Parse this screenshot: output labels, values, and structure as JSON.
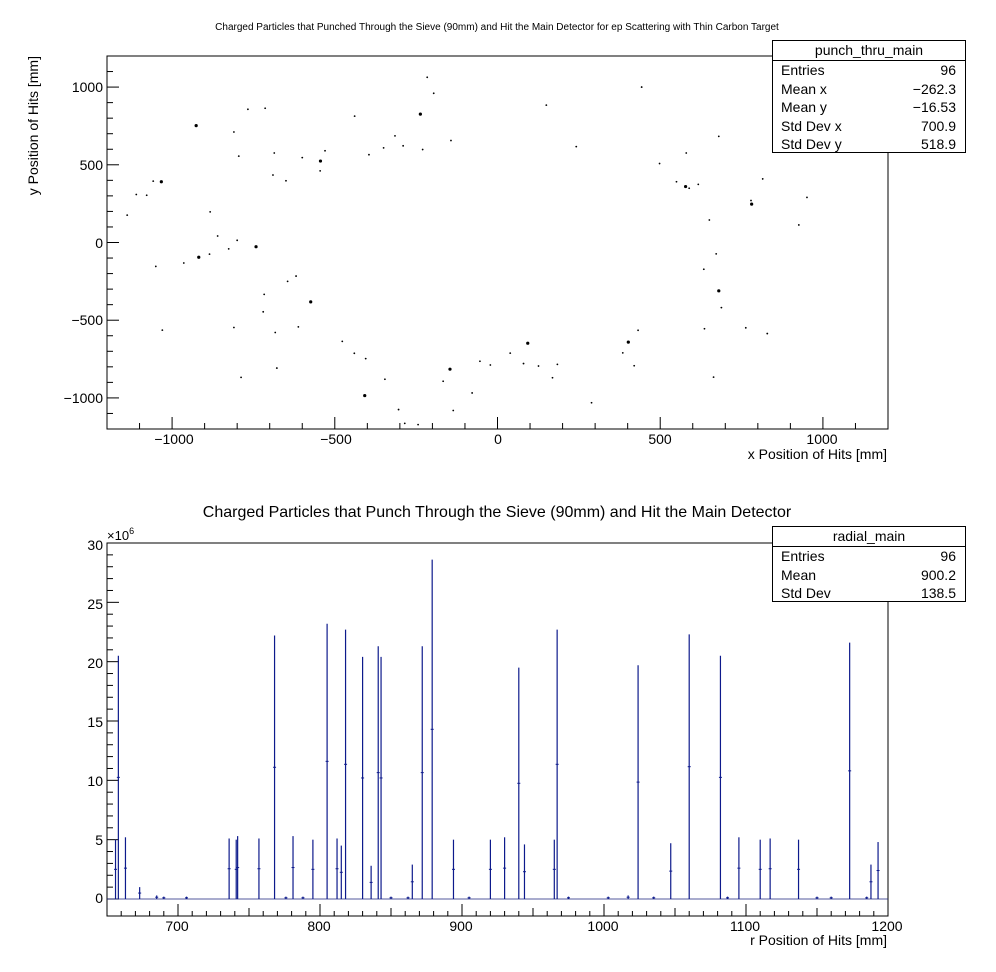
{
  "chart_data": [
    {
      "type": "scatter",
      "title": "Charged Particles that Punched Through the Sieve (90mm) and Hit the Main Detector for ep Scattering with Thin Carbon Target",
      "xlabel": "x Position of Hits [mm]",
      "ylabel": "y Position of Hits [mm]",
      "xlim": [
        -1200,
        1200
      ],
      "ylim": [
        -1200,
        1200
      ],
      "x_ticks": [
        "−1000",
        "−500",
        "0",
        "500",
        "1000"
      ],
      "y_ticks": [
        "−1000",
        "−500",
        "0",
        "500",
        "1000"
      ],
      "stats": {
        "name": "punch_thru_main",
        "rows": [
          {
            "label": "Entries",
            "value": "96"
          },
          {
            "label": "Mean x",
            "value": "−262.3"
          },
          {
            "label": "Mean y",
            "value": "−16.53"
          },
          {
            "label": "Std Dev x",
            "value": "700.9"
          },
          {
            "label": "Std Dev y",
            "value": "518.9"
          }
        ]
      },
      "points": [
        [
          -926,
          752
        ],
        [
          -714,
          864
        ],
        [
          -767,
          857
        ],
        [
          -810,
          711
        ],
        [
          -795,
          556
        ],
        [
          -1058,
          395
        ],
        [
          -1078,
          304
        ],
        [
          -1033,
          391
        ],
        [
          -1110,
          309
        ],
        [
          -1138,
          176
        ],
        [
          -883,
          197
        ],
        [
          -826,
          -41
        ],
        [
          -860,
          42
        ],
        [
          -885,
          -75
        ],
        [
          -918,
          -95
        ],
        [
          -964,
          -132
        ],
        [
          -1050,
          -154
        ],
        [
          -1030,
          -564
        ],
        [
          -810,
          -547
        ],
        [
          -788,
          -868
        ],
        [
          -800,
          14
        ],
        [
          -742,
          -27
        ],
        [
          -717,
          -334
        ],
        [
          -720,
          -446
        ],
        [
          -683,
          -579
        ],
        [
          -678,
          -808
        ],
        [
          -645,
          -250
        ],
        [
          -612,
          -543
        ],
        [
          -574,
          -382
        ],
        [
          -619,
          -216
        ],
        [
          -686,
          576
        ],
        [
          -650,
          397
        ],
        [
          -690,
          434
        ],
        [
          -600,
          546
        ],
        [
          -530,
          590
        ],
        [
          -544,
          524
        ],
        [
          -545,
          461
        ],
        [
          -439,
          813
        ],
        [
          -395,
          565
        ],
        [
          -350,
          609
        ],
        [
          -315,
          686
        ],
        [
          -290,
          622
        ],
        [
          -237,
          826
        ],
        [
          -230,
          598
        ],
        [
          -216,
          1063
        ],
        [
          -196,
          960
        ],
        [
          -143,
          656
        ],
        [
          -477,
          -636
        ],
        [
          -440,
          -713
        ],
        [
          -408,
          -985
        ],
        [
          -405,
          -747
        ],
        [
          -346,
          -880
        ],
        [
          -304,
          -1075
        ],
        [
          -285,
          -1164
        ],
        [
          -244,
          -1172
        ],
        [
          -167,
          -893
        ],
        [
          -146,
          -815
        ],
        [
          -136,
          -1081
        ],
        [
          -78,
          -968
        ],
        [
          -54,
          -764
        ],
        [
          -22,
          -788
        ],
        [
          39,
          -712
        ],
        [
          80,
          -779
        ],
        [
          93,
          -648
        ],
        [
          126,
          -795
        ],
        [
          169,
          -870
        ],
        [
          184,
          -784
        ],
        [
          150,
          884
        ],
        [
          242,
          617
        ],
        [
          289,
          -1031
        ],
        [
          402,
          -641
        ],
        [
          385,
          -710
        ],
        [
          420,
          -793
        ],
        [
          432,
          -565
        ],
        [
          443,
          1000
        ],
        [
          498,
          508
        ],
        [
          550,
          391
        ],
        [
          578,
          360
        ],
        [
          580,
          576
        ],
        [
          589,
          349
        ],
        [
          617,
          374
        ],
        [
          634,
          -172
        ],
        [
          636,
          -555
        ],
        [
          664,
          -866
        ],
        [
          680,
          -311
        ],
        [
          672,
          -73
        ],
        [
          680,
          683
        ],
        [
          651,
          145
        ],
        [
          688,
          -419
        ],
        [
          763,
          -549
        ],
        [
          779,
          270
        ],
        [
          781,
          247
        ],
        [
          815,
          409
        ],
        [
          829,
          -586
        ],
        [
          926,
          113
        ],
        [
          951,
          290
        ]
      ]
    },
    {
      "type": "bar",
      "title": "Charged Particles that Punch Through the Sieve (90mm) and Hit the Main Detector",
      "xlabel": "r Position of Hits [mm]",
      "ylabel": "",
      "xlim": [
        650,
        1200
      ],
      "ylim": [
        0,
        30
      ],
      "y_multiplier": "×10",
      "y_multiplier_exp": "6",
      "x_ticks": [
        "700",
        "800",
        "900",
        "1000",
        "1100",
        "1200"
      ],
      "y_ticks": [
        "0",
        "5",
        "10",
        "15",
        "20",
        "25",
        "30"
      ],
      "stats": {
        "name": "radial_main",
        "rows": [
          {
            "label": "Entries",
            "value": "96"
          },
          {
            "label": "Mean",
            "value": "900.2"
          },
          {
            "label": "Std Dev",
            "value": "138.5"
          }
        ]
      },
      "bars": [
        [
          656,
          5.0
        ],
        [
          658,
          20.5
        ],
        [
          663,
          5.2
        ],
        [
          673,
          1.0
        ],
        [
          736,
          5.1
        ],
        [
          741,
          5.0
        ],
        [
          742,
          5.3
        ],
        [
          757,
          5.1
        ],
        [
          768,
          22.2
        ],
        [
          781,
          5.3
        ],
        [
          795,
          5.0
        ],
        [
          805,
          23.2
        ],
        [
          812,
          5.1
        ],
        [
          815,
          4.5
        ],
        [
          818,
          22.7
        ],
        [
          830,
          20.4
        ],
        [
          836,
          2.8
        ],
        [
          841,
          21.3
        ],
        [
          843,
          20.4
        ],
        [
          865,
          2.9
        ],
        [
          872,
          21.3
        ],
        [
          879,
          28.6
        ],
        [
          894,
          5.0
        ],
        [
          920,
          5.0
        ],
        [
          930,
          5.2
        ],
        [
          940,
          19.5
        ],
        [
          944,
          4.6
        ],
        [
          965,
          5.0
        ],
        [
          967,
          22.7
        ],
        [
          1024,
          19.7
        ],
        [
          1047,
          4.7
        ],
        [
          1060,
          22.3
        ],
        [
          1082,
          20.5
        ],
        [
          1095,
          5.2
        ],
        [
          1110,
          5.0
        ],
        [
          1117,
          5.1
        ],
        [
          1137,
          5.0
        ],
        [
          1173,
          21.6
        ],
        [
          1188,
          2.9
        ],
        [
          1193,
          4.8
        ],
        [
          1185,
          0.2
        ],
        [
          1160,
          0.2
        ],
        [
          1150,
          0.2
        ],
        [
          1087,
          0.2
        ],
        [
          1035,
          0.2
        ],
        [
          1017,
          0.3
        ],
        [
          1003,
          0.2
        ],
        [
          975,
          0.2
        ],
        [
          905,
          0.2
        ],
        [
          862,
          0.2
        ],
        [
          850,
          0.2
        ],
        [
          788,
          0.2
        ],
        [
          776,
          0.2
        ],
        [
          706,
          0.2
        ],
        [
          690,
          0.2
        ],
        [
          685,
          0.3
        ]
      ]
    }
  ]
}
